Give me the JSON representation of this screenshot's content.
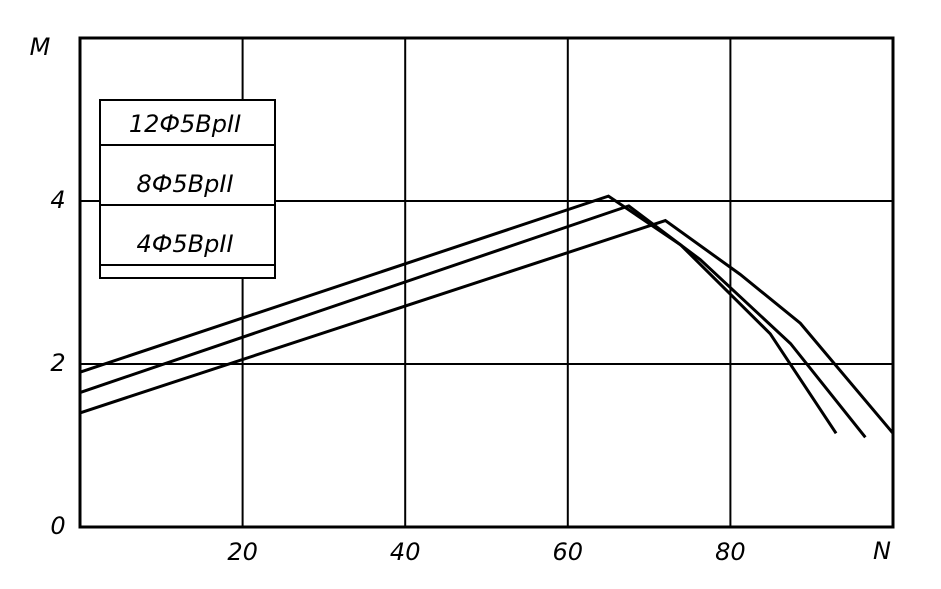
{
  "chart_data": {
    "type": "line",
    "x_label": "N",
    "y_label": "M",
    "xlim": [
      0,
      100
    ],
    "ylim": [
      0,
      6
    ],
    "xticks": [
      20,
      40,
      60,
      80
    ],
    "yticks": [
      0,
      2,
      4
    ],
    "grid": true,
    "series": [
      {
        "name": "12Ф5ВрII",
        "color": "#000000",
        "x": [
          0,
          65,
          73.9,
          84.9,
          93
        ],
        "values": [
          1.9,
          4.06,
          3.46,
          2.37,
          1.15
        ]
      },
      {
        "name": "8Ф5ВрII",
        "color": "#000000",
        "x": [
          0,
          67.5,
          76.3,
          87.4,
          96.6
        ],
        "values": [
          1.65,
          3.94,
          3.28,
          2.25,
          1.1
        ]
      },
      {
        "name": "4Ф5ВрII",
        "color": "#000000",
        "x": [
          0,
          72,
          81.2,
          88.6,
          100
        ],
        "values": [
          1.4,
          3.76,
          3.1,
          2.5,
          1.15
        ]
      }
    ]
  }
}
